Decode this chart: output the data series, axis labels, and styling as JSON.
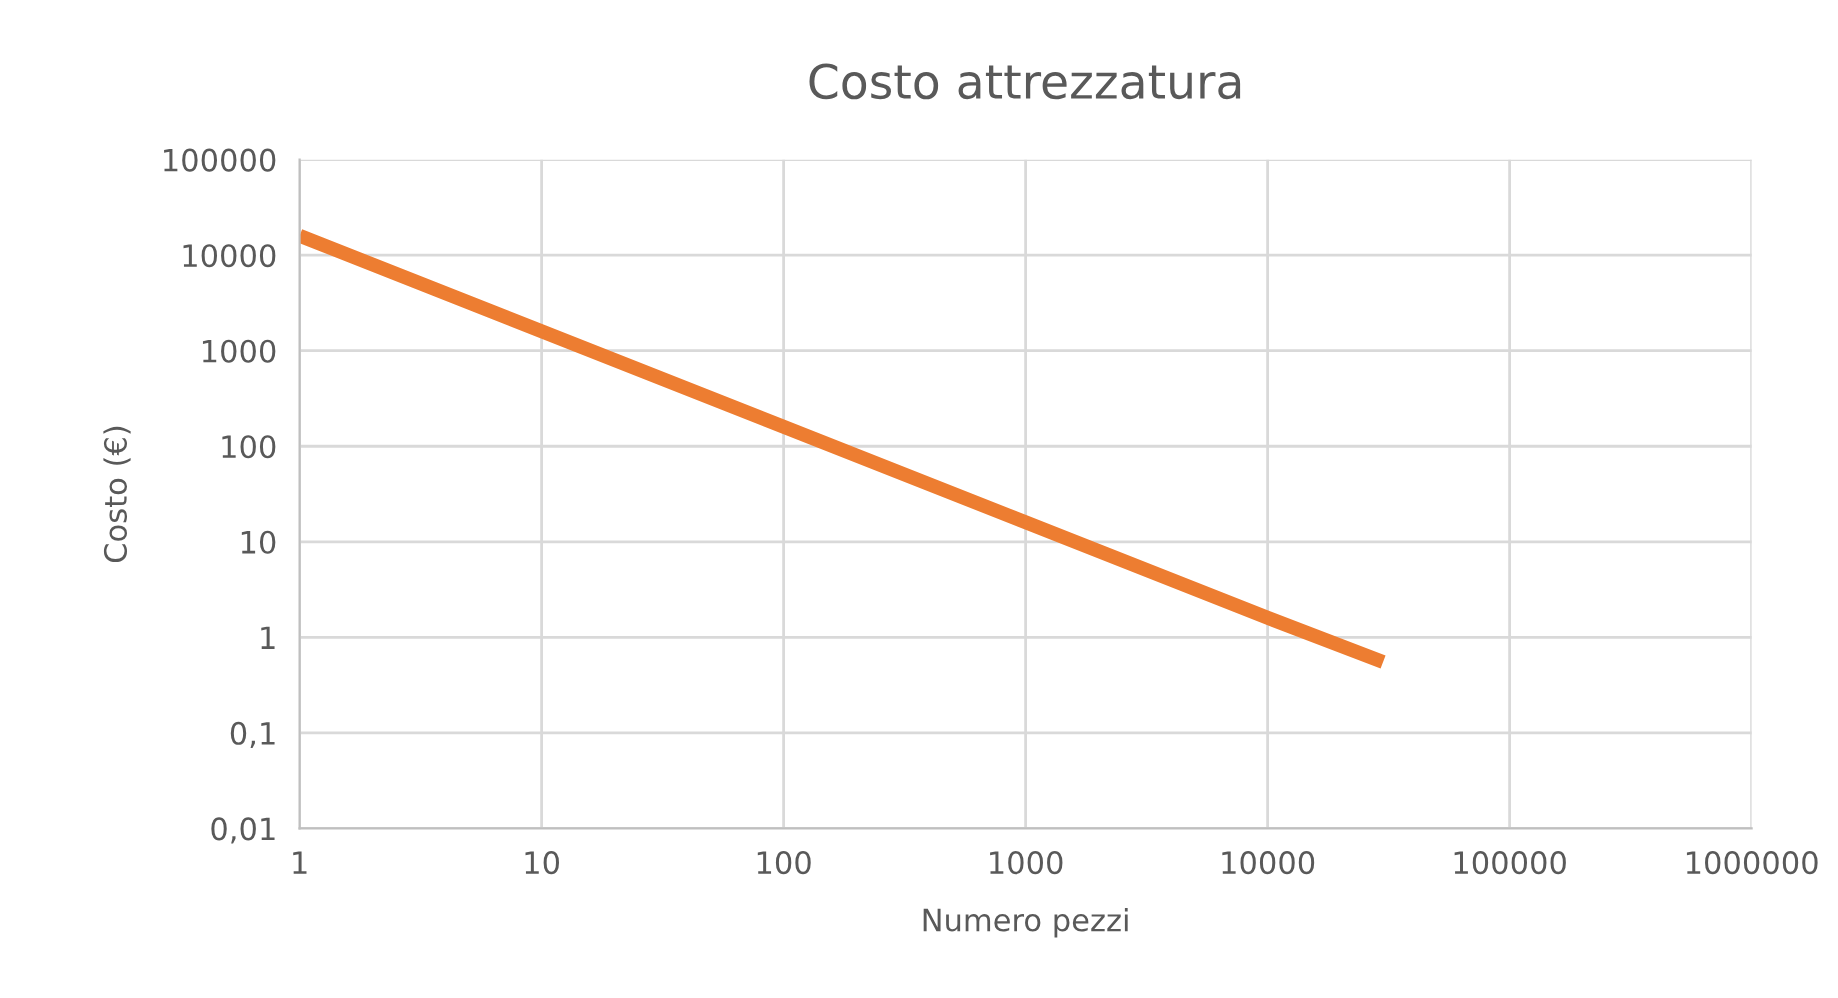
{
  "chart_data": {
    "type": "line",
    "title": "Costo attrezzatura",
    "xlabel": "Numero pezzi",
    "ylabel": "Costo (€)",
    "log": "xy",
    "grid": true,
    "legend": false,
    "marker": "none",
    "line_style": "solid",
    "x": [
      1,
      10,
      100,
      1000,
      10000,
      30000
    ],
    "series": [
      {
        "color": "#ed7d31",
        "values": [
          16000,
          1600,
          160,
          16,
          1.6,
          0.55
        ]
      }
    ],
    "xlim": [
      1,
      1000000
    ],
    "xticks": [
      1,
      10,
      100,
      1000,
      10000,
      100000,
      1000000
    ],
    "ylim": [
      0.01,
      100000
    ],
    "yticks": [
      {
        "value": 0.01,
        "label": "0,01"
      },
      {
        "value": 0.1,
        "label": "0,1"
      },
      1,
      10,
      100,
      1000,
      10000,
      100000
    ]
  }
}
